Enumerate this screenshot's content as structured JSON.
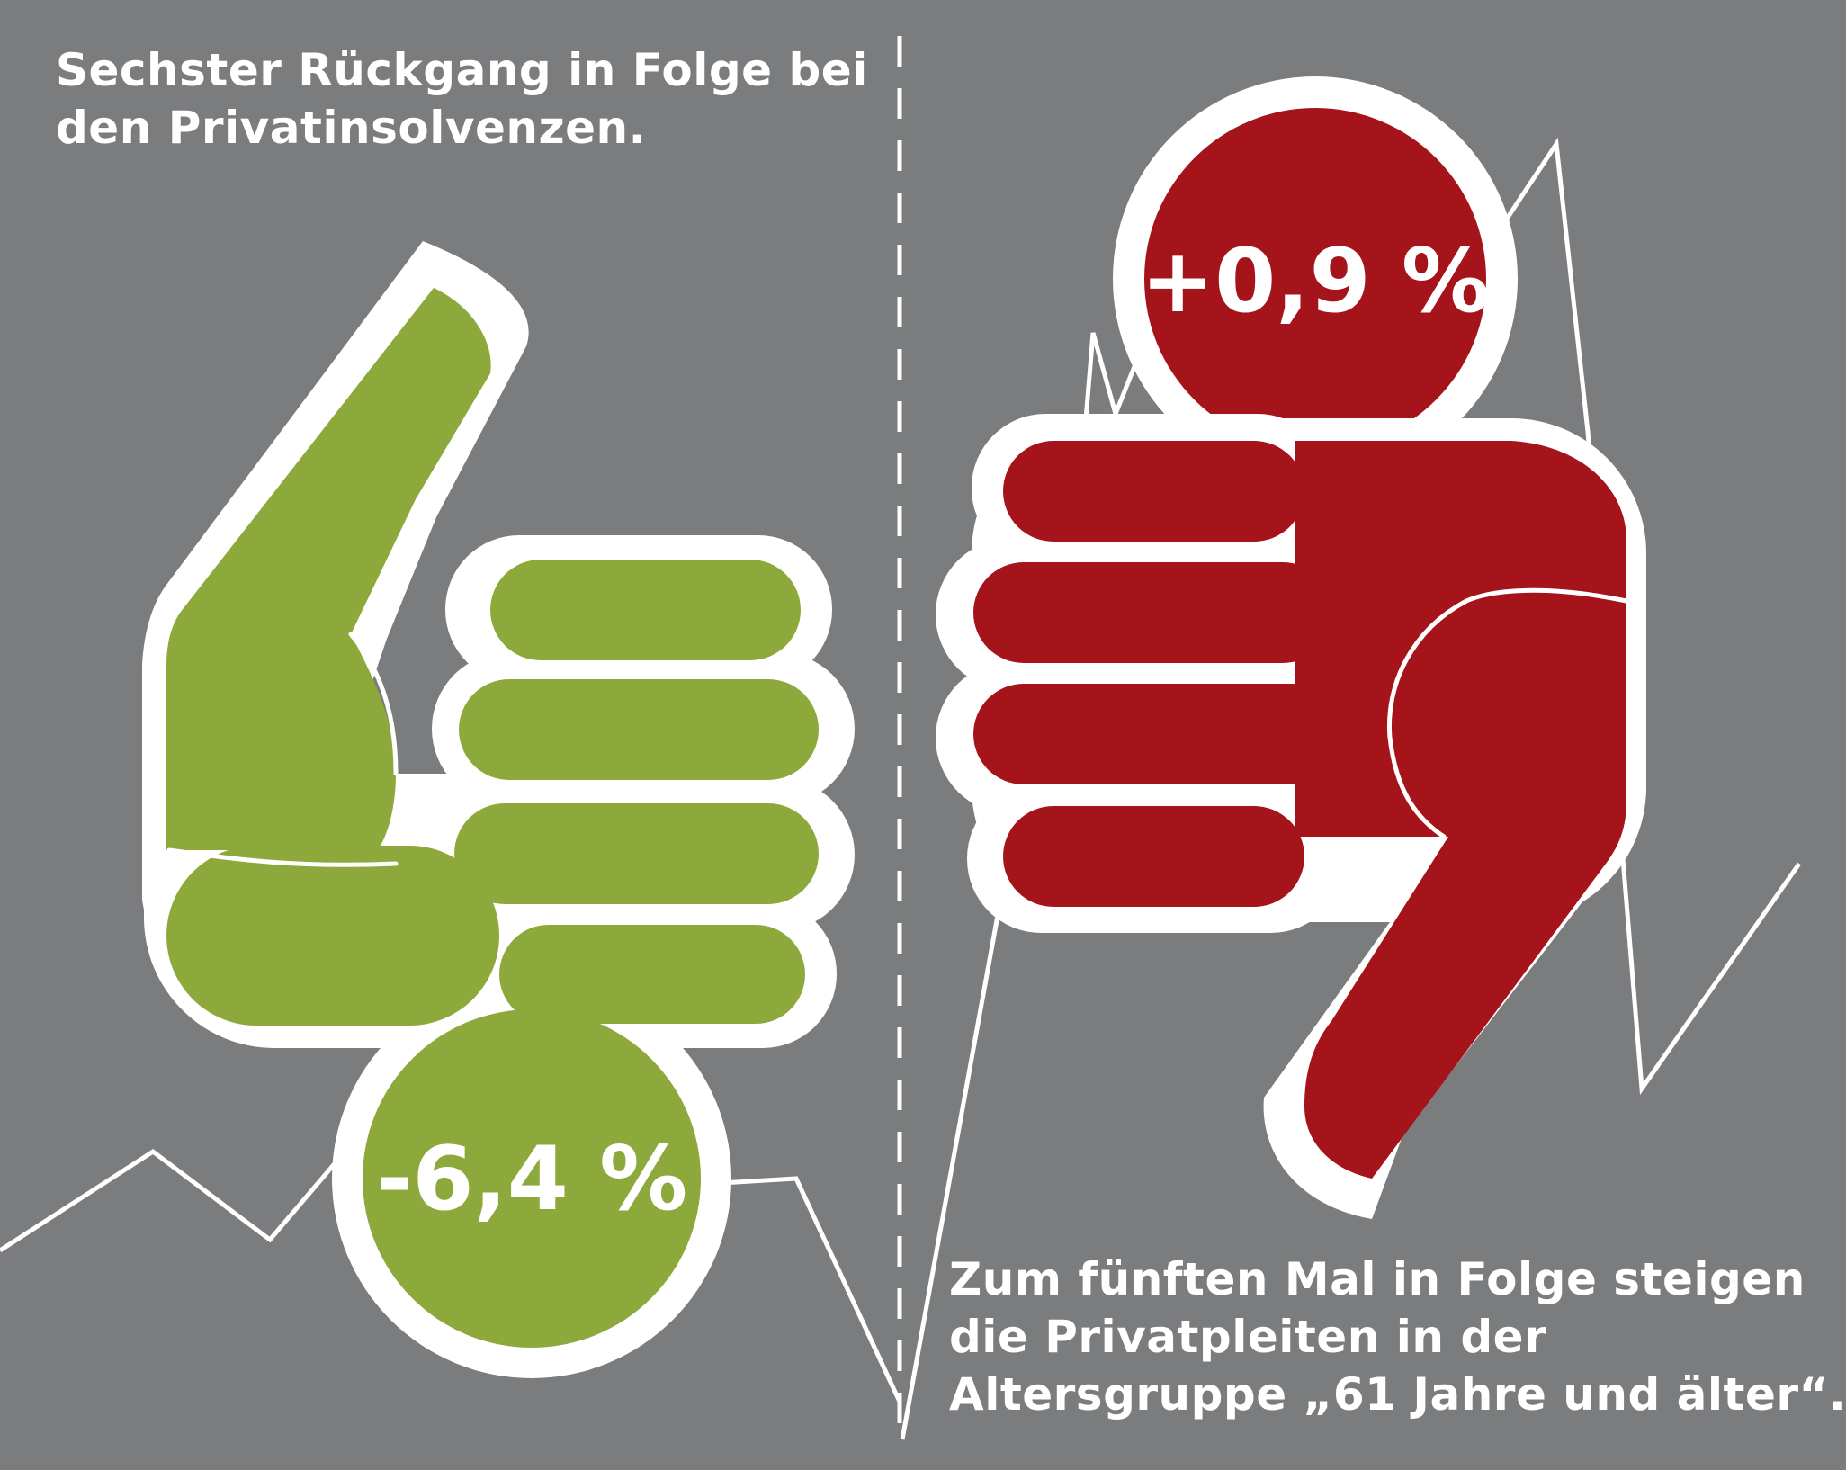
{
  "left_panel": {
    "caption_lines": [
      "Sechster Rückgang in Folge bei",
      "den Privatinsolvenzen."
    ],
    "value": "-6,4 %",
    "color": "#8da83b",
    "hand_icon": "thumbs-up-icon"
  },
  "right_panel": {
    "caption_lines": [
      "Zum fünften Mal in Folge steigen",
      "die Privatpleiten in der",
      "Altersgruppe „61 Jahre und älter“."
    ],
    "value": "+0,9 %",
    "color": "#a5141a",
    "hand_icon": "thumbs-down-icon"
  },
  "colors": {
    "background": "#7b7c7e",
    "outline": "#ffffff"
  }
}
